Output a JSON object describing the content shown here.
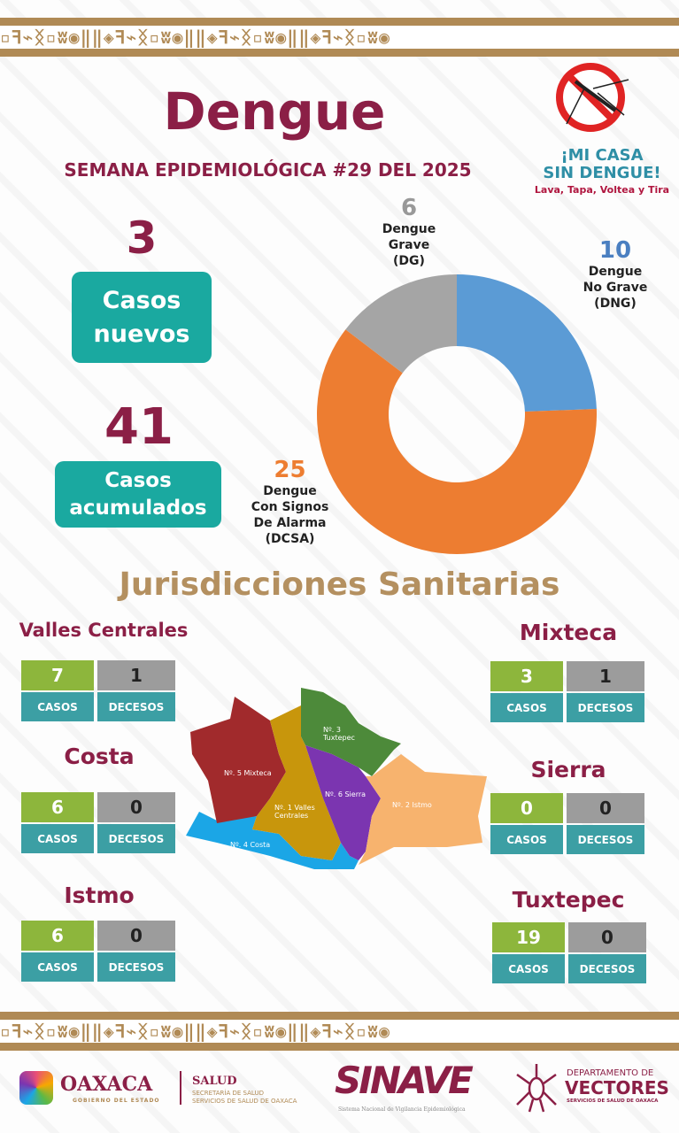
{
  "header": {
    "title": "Dengue",
    "subtitle": "SEMANA EPIDEMIOLÓGICA #29 DEL 2025"
  },
  "campaign": {
    "line1": "¡MI CASA",
    "line2": "SIN DENGUE!",
    "tagline": "Lava, Tapa, Voltea y Tira",
    "icon": "no-mosquito-icon"
  },
  "summary": {
    "new_cases": "3",
    "new_cases_label": "Casos nuevos",
    "cumulative": "41",
    "cumulative_label": "Casos acumulados"
  },
  "chart_data": {
    "type": "pie",
    "donut": true,
    "categories": [
      "Dengue No Grave (DNG)",
      "Dengue Con Signos De Alarma (DCSA)",
      "Dengue Grave (DG)"
    ],
    "values": [
      10,
      25,
      6
    ],
    "colors": [
      "#5b9bd5",
      "#ed7d31",
      "#a5a5a5"
    ],
    "labels": [
      {
        "value": "10",
        "text": [
          "Dengue",
          "No Grave",
          "(DNG)"
        ]
      },
      {
        "value": "25",
        "text": [
          "Dengue",
          "Con Signos",
          "De Alarma",
          "(DCSA)"
        ]
      },
      {
        "value": "6",
        "text": [
          "Dengue",
          "Grave",
          "(DG)"
        ]
      }
    ]
  },
  "section_title": "Jurisdicciones Sanitarias",
  "jurisdictions": [
    {
      "name": "Valles Centrales",
      "casos": "7",
      "decesos": "1"
    },
    {
      "name": "Mixteca",
      "casos": "3",
      "decesos": "1"
    },
    {
      "name": "Costa",
      "casos": "6",
      "decesos": "0"
    },
    {
      "name": "Sierra",
      "casos": "0",
      "decesos": "0"
    },
    {
      "name": "Istmo",
      "casos": "6",
      "decesos": "0"
    },
    {
      "name": "Tuxtepec",
      "casos": "19",
      "decesos": "0"
    }
  ],
  "box_labels": {
    "casos": "CASOS",
    "decesos": "DECESOS"
  },
  "map": {
    "labels": [
      "Nº. 5 Mixteca",
      "Nº. 1 Valles",
      "Centrales",
      "Nº. 3",
      "Tuxtepec",
      "Nº. 6 Sierra",
      "Nº. 2 Istmo",
      "Nº. 4 Costa"
    ],
    "colors": {
      "mixteca": "#a12a2c",
      "valles": "#c8960c",
      "tuxtepec": "#4d8a3a",
      "sierra": "#7b35b0",
      "istmo": "#f7b36e",
      "costa": "#1ba6e6"
    }
  },
  "footer": {
    "oaxaca": "OAXACA",
    "oaxaca_sub": "GOBIERNO DEL ESTADO",
    "salud": "SALUD",
    "salud_sub1": "SECRETARÍA DE SALUD",
    "salud_sub2": "SERVICIOS DE SALUD DE OAXACA",
    "sinave": "SINAVE",
    "sinave_sub": "Sistema Nacional de Vigilancia Epidemiológica",
    "vect1": "DEPARTAMENTO DE",
    "vect2": "VECTORES",
    "vect3": "SERVICIOS DE SALUD DE OAXACA"
  },
  "band_pattern": "▫ꟻ⌁ᛝ▫ʬ◉‖‖◈ꟻ⌁ᛝ▫ʬ◉‖‖◈ꟻ⌁ᛝ▫ʬ◉‖‖◈ꟻ⌁ᛝ▫ʬ◉"
}
